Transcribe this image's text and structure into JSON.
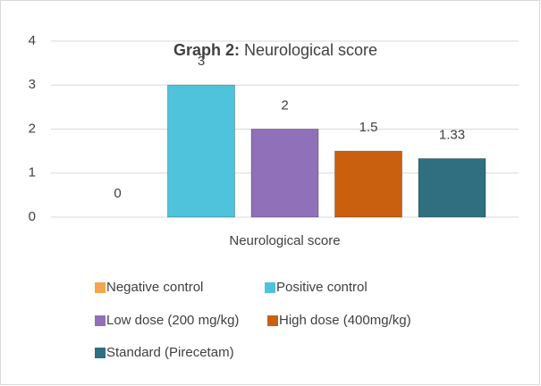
{
  "chart_data": {
    "type": "bar",
    "title": [
      "Graph 2:",
      "Neurological score"
    ],
    "categories": [
      "Neurological score"
    ],
    "series": [
      {
        "name": "Negative control",
        "color": "#f5a54a",
        "values": [
          0
        ]
      },
      {
        "name": "Positive control",
        "color": "#4fc3dc",
        "values": [
          3
        ]
      },
      {
        "name": "Low dose (200 mg/kg)",
        "color": "#9070b8",
        "values": [
          2
        ]
      },
      {
        "name": "High dose (400mg/kg)",
        "color": "#c9600f",
        "values": [
          1.5
        ]
      },
      {
        "name": "Standard (Pirecetam)",
        "color": "#2f6f80",
        "values": [
          1.33
        ]
      }
    ],
    "ylim": [
      0,
      4
    ],
    "yticks": [
      0,
      1,
      2,
      3,
      4
    ],
    "grid": true
  }
}
